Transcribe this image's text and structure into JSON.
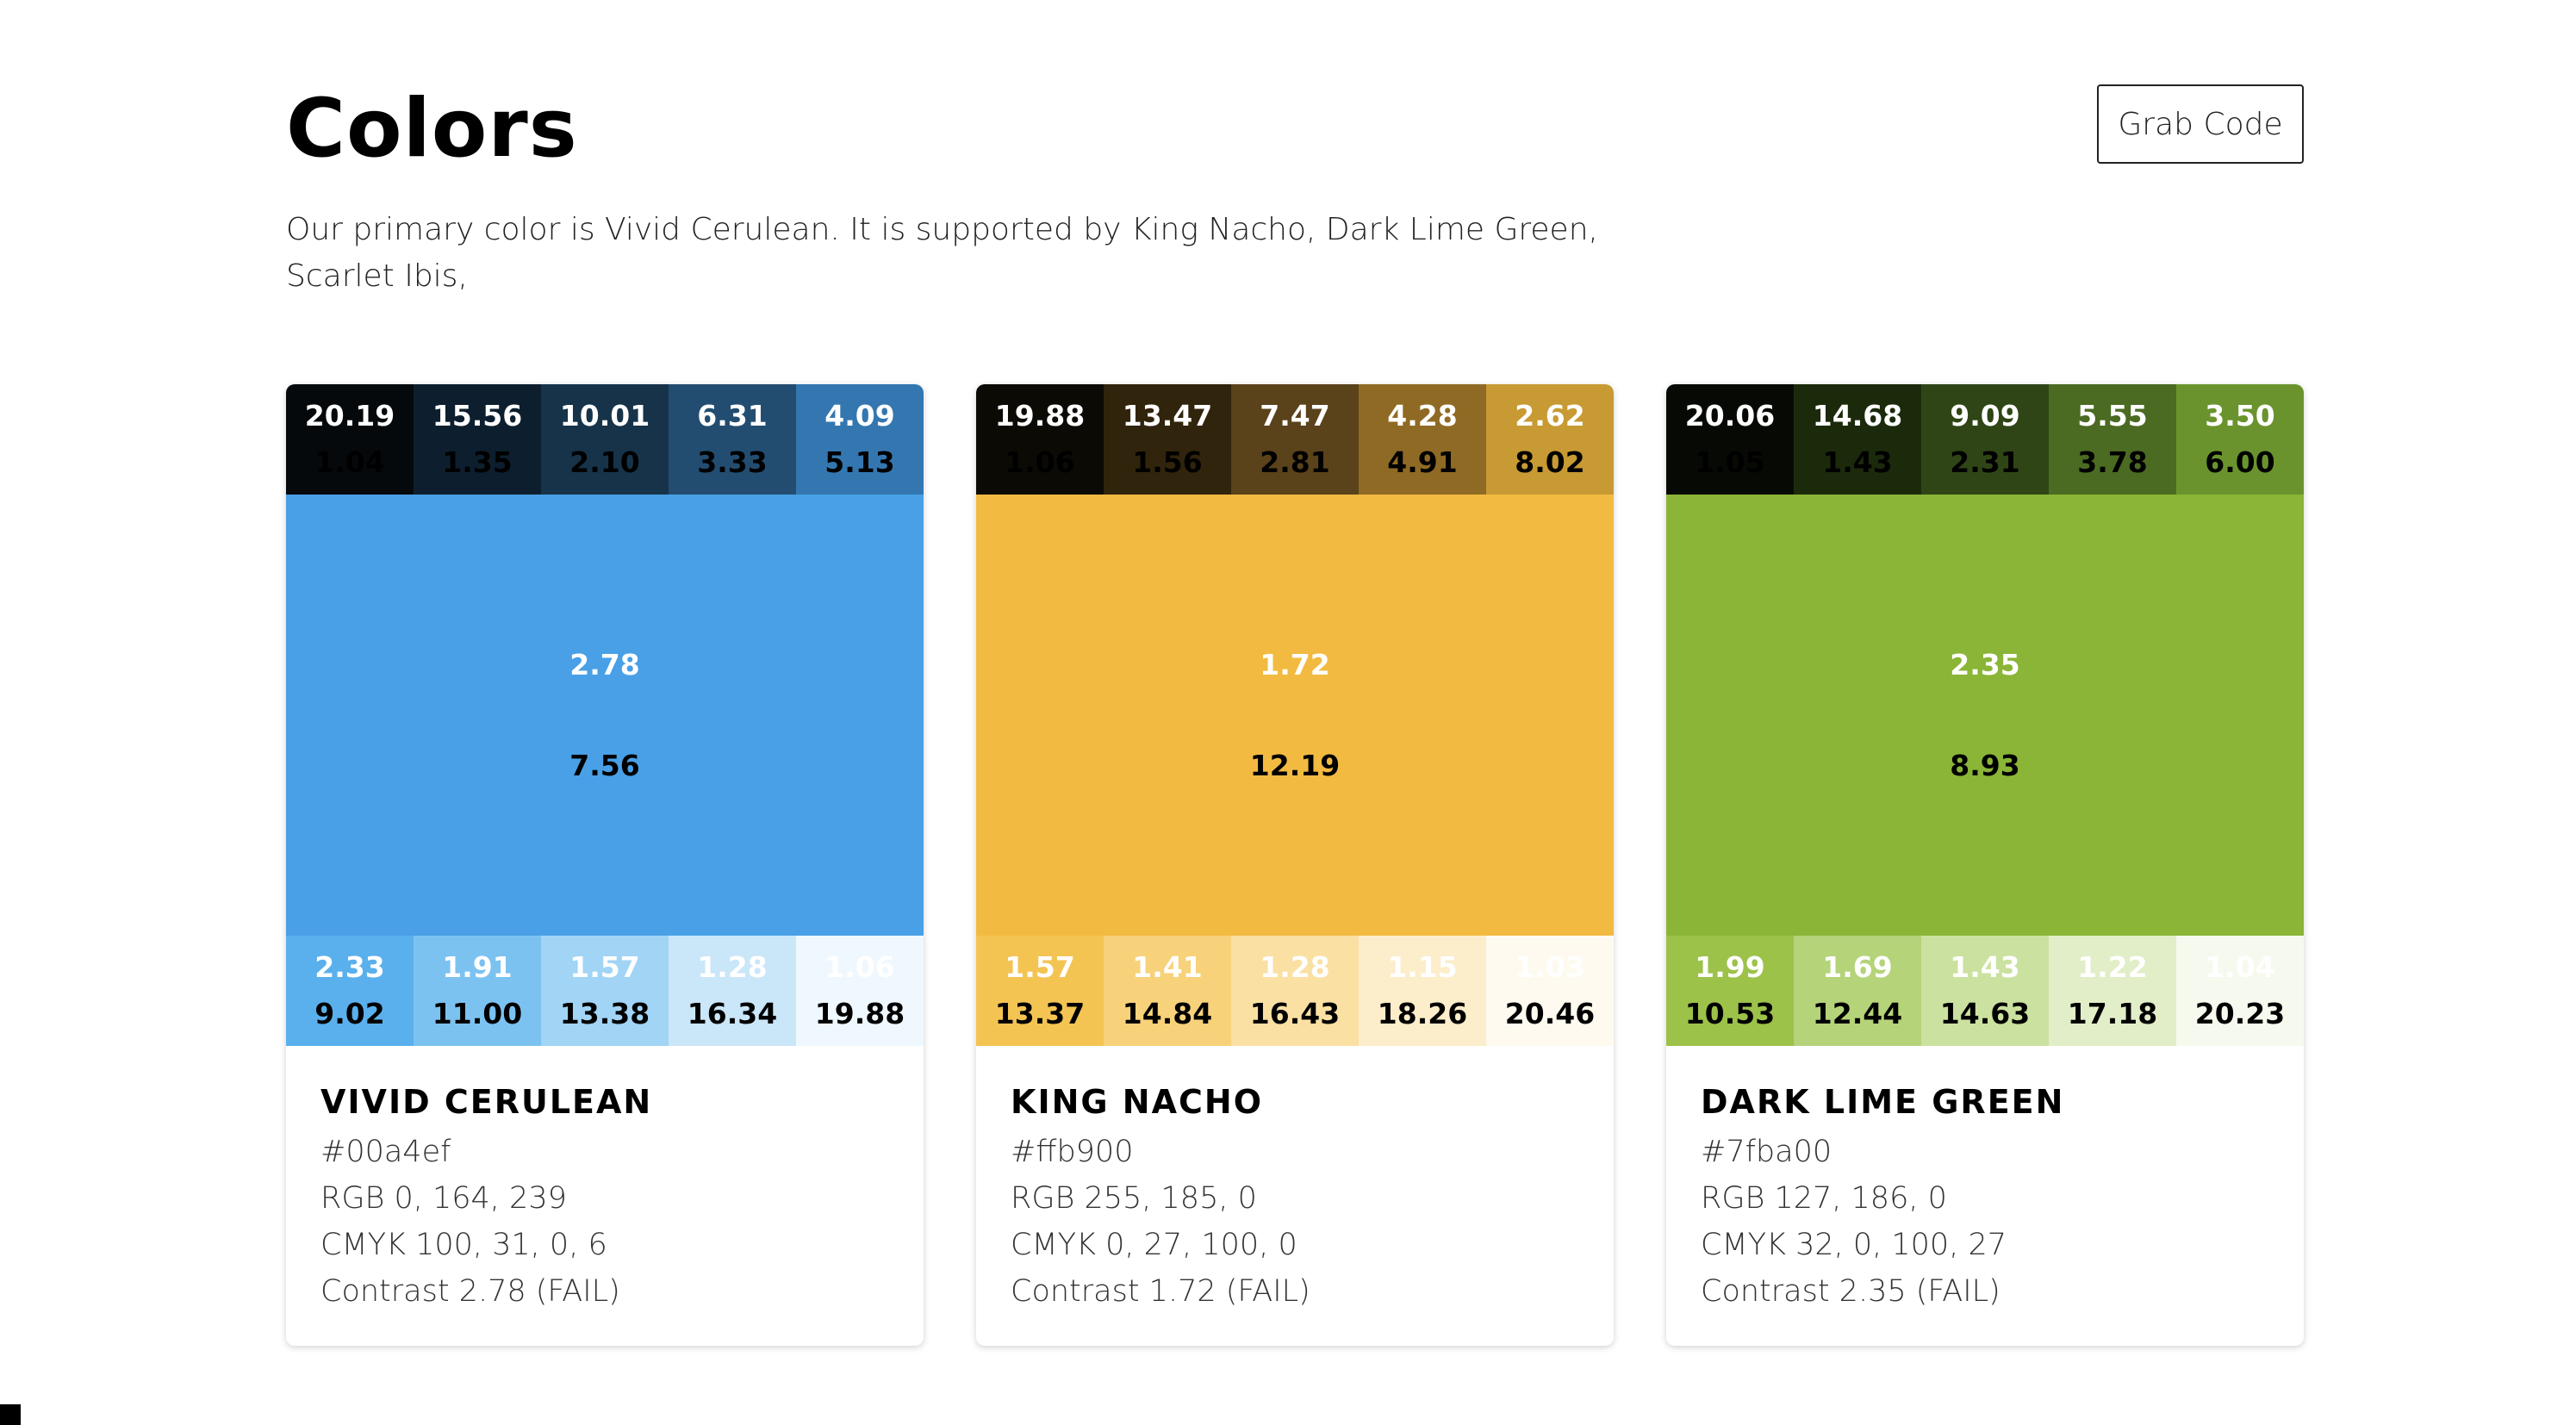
{
  "header": {
    "title": "Colors",
    "grab_code_label": "Grab Code"
  },
  "description": "Our primary color is Vivid Cerulean. It is supported by King Nacho, Dark Lime Green, Scarlet Ibis,",
  "cards": [
    {
      "name": "VIVID CERULEAN",
      "hex": "#00a4ef",
      "rgb": "RGB 0, 164, 239",
      "cmyk": "CMYK 100, 31, 0, 6",
      "contrast": "Contrast 2.78 (FAIL)",
      "main": {
        "color": "#49a0e6",
        "white_contrast": "2.78",
        "black_contrast": "7.56"
      },
      "dark_shades": [
        {
          "color": "#06090c",
          "white_contrast": "20.19",
          "black_contrast": "1.04"
        },
        {
          "color": "#0d1f2e",
          "white_contrast": "15.56",
          "black_contrast": "1.35"
        },
        {
          "color": "#163349",
          "white_contrast": "10.01",
          "black_contrast": "2.10"
        },
        {
          "color": "#234d70",
          "white_contrast": "6.31",
          "black_contrast": "3.33"
        },
        {
          "color": "#3477b0",
          "white_contrast": "4.09",
          "black_contrast": "5.13"
        }
      ],
      "light_shades": [
        {
          "color": "#5ab0ec",
          "white_contrast": "2.33",
          "black_contrast": "9.02"
        },
        {
          "color": "#7cc2f1",
          "white_contrast": "1.91",
          "black_contrast": "11.00"
        },
        {
          "color": "#a1d4f5",
          "white_contrast": "1.57",
          "black_contrast": "13.38"
        },
        {
          "color": "#cae6f9",
          "white_contrast": "1.28",
          "black_contrast": "16.34"
        },
        {
          "color": "#eff8fe",
          "white_contrast": "1.06",
          "black_contrast": "19.88"
        }
      ]
    },
    {
      "name": "KING NACHO",
      "hex": "#ffb900",
      "rgb": "RGB 255, 185, 0",
      "cmyk": "CMYK 0, 27, 100, 0",
      "contrast": "Contrast 1.72 (FAIL)",
      "main": {
        "color": "#f2ba41",
        "white_contrast": "1.72",
        "black_contrast": "12.19"
      },
      "dark_shades": [
        {
          "color": "#0c0a05",
          "white_contrast": "19.88",
          "black_contrast": "1.06"
        },
        {
          "color": "#31240c",
          "white_contrast": "13.47",
          "black_contrast": "1.56"
        },
        {
          "color": "#5a421a",
          "white_contrast": "7.47",
          "black_contrast": "2.81"
        },
        {
          "color": "#8f6a24",
          "white_contrast": "4.28",
          "black_contrast": "4.91"
        },
        {
          "color": "#c79a33",
          "white_contrast": "2.62",
          "black_contrast": "8.02"
        }
      ],
      "light_shades": [
        {
          "color": "#f4c453",
          "white_contrast": "1.57",
          "black_contrast": "13.37"
        },
        {
          "color": "#f7d27a",
          "white_contrast": "1.41",
          "black_contrast": "14.84"
        },
        {
          "color": "#fae0a3",
          "white_contrast": "1.28",
          "black_contrast": "16.43"
        },
        {
          "color": "#fcedcb",
          "white_contrast": "1.15",
          "black_contrast": "18.26"
        },
        {
          "color": "#fefaef",
          "white_contrast": "1.03",
          "black_contrast": "20.46"
        }
      ]
    },
    {
      "name": "DARK LIME GREEN",
      "hex": "#7fba00",
      "rgb": "RGB 127, 186, 0",
      "cmyk": "CMYK 32, 0, 100, 27",
      "contrast": "Contrast 2.35 (FAIL)",
      "main": {
        "color": "#8ab536",
        "white_contrast": "2.35",
        "black_contrast": "8.93"
      },
      "dark_shades": [
        {
          "color": "#070a04",
          "white_contrast": "20.06",
          "black_contrast": "1.05"
        },
        {
          "color": "#1c2a0c",
          "white_contrast": "14.68",
          "black_contrast": "1.43"
        },
        {
          "color": "#2f4516",
          "white_contrast": "9.09",
          "black_contrast": "2.31"
        },
        {
          "color": "#4b6a22",
          "white_contrast": "5.55",
          "black_contrast": "3.78"
        },
        {
          "color": "#6a932e",
          "white_contrast": "3.50",
          "black_contrast": "6.00"
        }
      ],
      "light_shades": [
        {
          "color": "#9cc24a",
          "white_contrast": "1.99",
          "black_contrast": "10.53"
        },
        {
          "color": "#b5d379",
          "white_contrast": "1.69",
          "black_contrast": "12.44"
        },
        {
          "color": "#cbe19f",
          "white_contrast": "1.43",
          "black_contrast": "14.63"
        },
        {
          "color": "#e1eec7",
          "white_contrast": "1.22",
          "black_contrast": "17.18"
        },
        {
          "color": "#f6faee",
          "white_contrast": "1.04",
          "black_contrast": "20.23"
        }
      ]
    }
  ]
}
